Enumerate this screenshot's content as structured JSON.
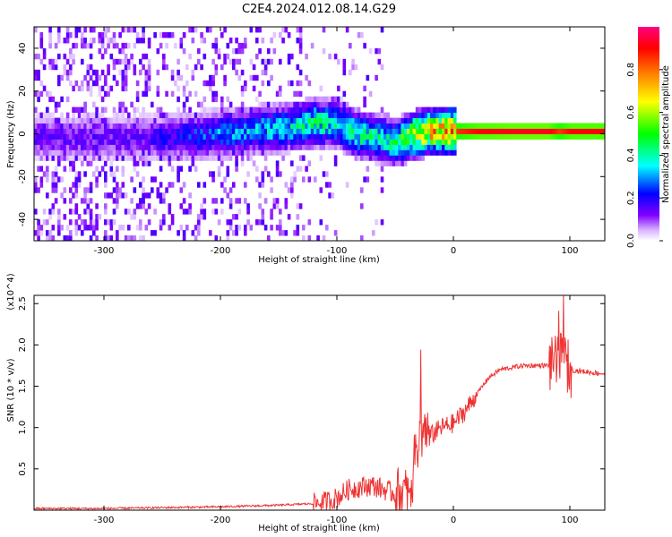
{
  "figure_title": "C2E4.2024.012.08.14.G29",
  "chart_data": [
    {
      "type": "heatmap",
      "title": "C2E4.2024.012.08.14.G29",
      "xlabel": "Height of straight line (km)",
      "ylabel": "Frequency (Hz)",
      "xlim": [
        -360,
        130
      ],
      "ylim": [
        -50,
        50
      ],
      "xticks": [
        -300,
        -200,
        -100,
        0,
        100
      ],
      "yticks": [
        -40,
        -20,
        0,
        20,
        40
      ],
      "xtick_labels": [
        "-300",
        "-200",
        "-100",
        "0",
        "100"
      ],
      "ytick_labels": [
        "-40",
        "-20",
        "0",
        "20",
        "40"
      ],
      "colorbar": {
        "label": "Normalized spectral amplitude",
        "range": [
          0.0,
          1.0
        ],
        "ticks": [
          0.0,
          0.2,
          0.4,
          0.6,
          0.8
        ],
        "tick_labels": [
          "0.0",
          "0.2",
          "0.4",
          "0.6",
          "0.8"
        ],
        "colormap": [
          "#ffffff",
          "#d9b3ff",
          "#8000ff",
          "#0000ff",
          "#00ffff",
          "#00ff00",
          "#ffff00",
          "#ff8000",
          "#ff0000",
          "#ff0080"
        ]
      },
      "ridge": {
        "x": [
          -270,
          -250,
          -220,
          -200,
          -180,
          -160,
          -140,
          -120,
          -100,
          -80,
          -60,
          -50,
          -40,
          -30,
          -20,
          -10,
          0,
          20,
          50,
          80,
          90,
          100,
          130
        ],
        "center_freq": [
          -3,
          -3,
          -2,
          -1,
          0,
          1,
          2,
          4,
          3,
          -2,
          -4,
          -5,
          -3,
          -1,
          0,
          0.5,
          0,
          0,
          0,
          0,
          0,
          0,
          0
        ],
        "peak_amplitude": [
          0.15,
          0.2,
          0.25,
          0.3,
          0.32,
          0.35,
          0.38,
          0.45,
          0.4,
          0.45,
          0.4,
          0.45,
          0.6,
          0.7,
          0.75,
          0.8,
          0.85,
          0.9,
          0.92,
          0.92,
          0.85,
          0.9,
          0.9
        ]
      }
    },
    {
      "type": "line",
      "xlabel": "Height of straight line (km)",
      "ylabel": "SNR (10 * v/v)",
      "y_multiplier": "(x10^4)",
      "xlim": [
        -360,
        130
      ],
      "ylim": [
        0,
        2.6
      ],
      "xticks": [
        -300,
        -200,
        -100,
        0,
        100
      ],
      "yticks": [
        0.5,
        1.0,
        1.5,
        2.0,
        2.5
      ],
      "xtick_labels": [
        "-300",
        "-200",
        "-100",
        "0",
        "100"
      ],
      "ytick_labels": [
        "0.5",
        "1.0",
        "1.5",
        "2.0",
        "2.5"
      ],
      "color": "#ee3333",
      "series": [
        {
          "name": "SNR",
          "x": [
            -360,
            -300,
            -250,
            -200,
            -150,
            -120,
            -110,
            -100,
            -90,
            -80,
            -70,
            -60,
            -50,
            -40,
            -35,
            -30,
            -25,
            -20,
            -15,
            -10,
            0,
            10,
            20,
            30,
            40,
            60,
            80,
            85,
            90,
            95,
            100,
            110,
            130
          ],
          "y": [
            0.02,
            0.02,
            0.03,
            0.04,
            0.06,
            0.08,
            0.1,
            0.15,
            0.25,
            0.28,
            0.3,
            0.25,
            0.2,
            0.2,
            0.4,
            0.8,
            1.0,
            0.9,
            0.95,
            1.0,
            1.05,
            1.2,
            1.4,
            1.6,
            1.7,
            1.75,
            1.75,
            1.75,
            1.8,
            1.8,
            1.7,
            1.68,
            1.65
          ]
        }
      ]
    }
  ]
}
